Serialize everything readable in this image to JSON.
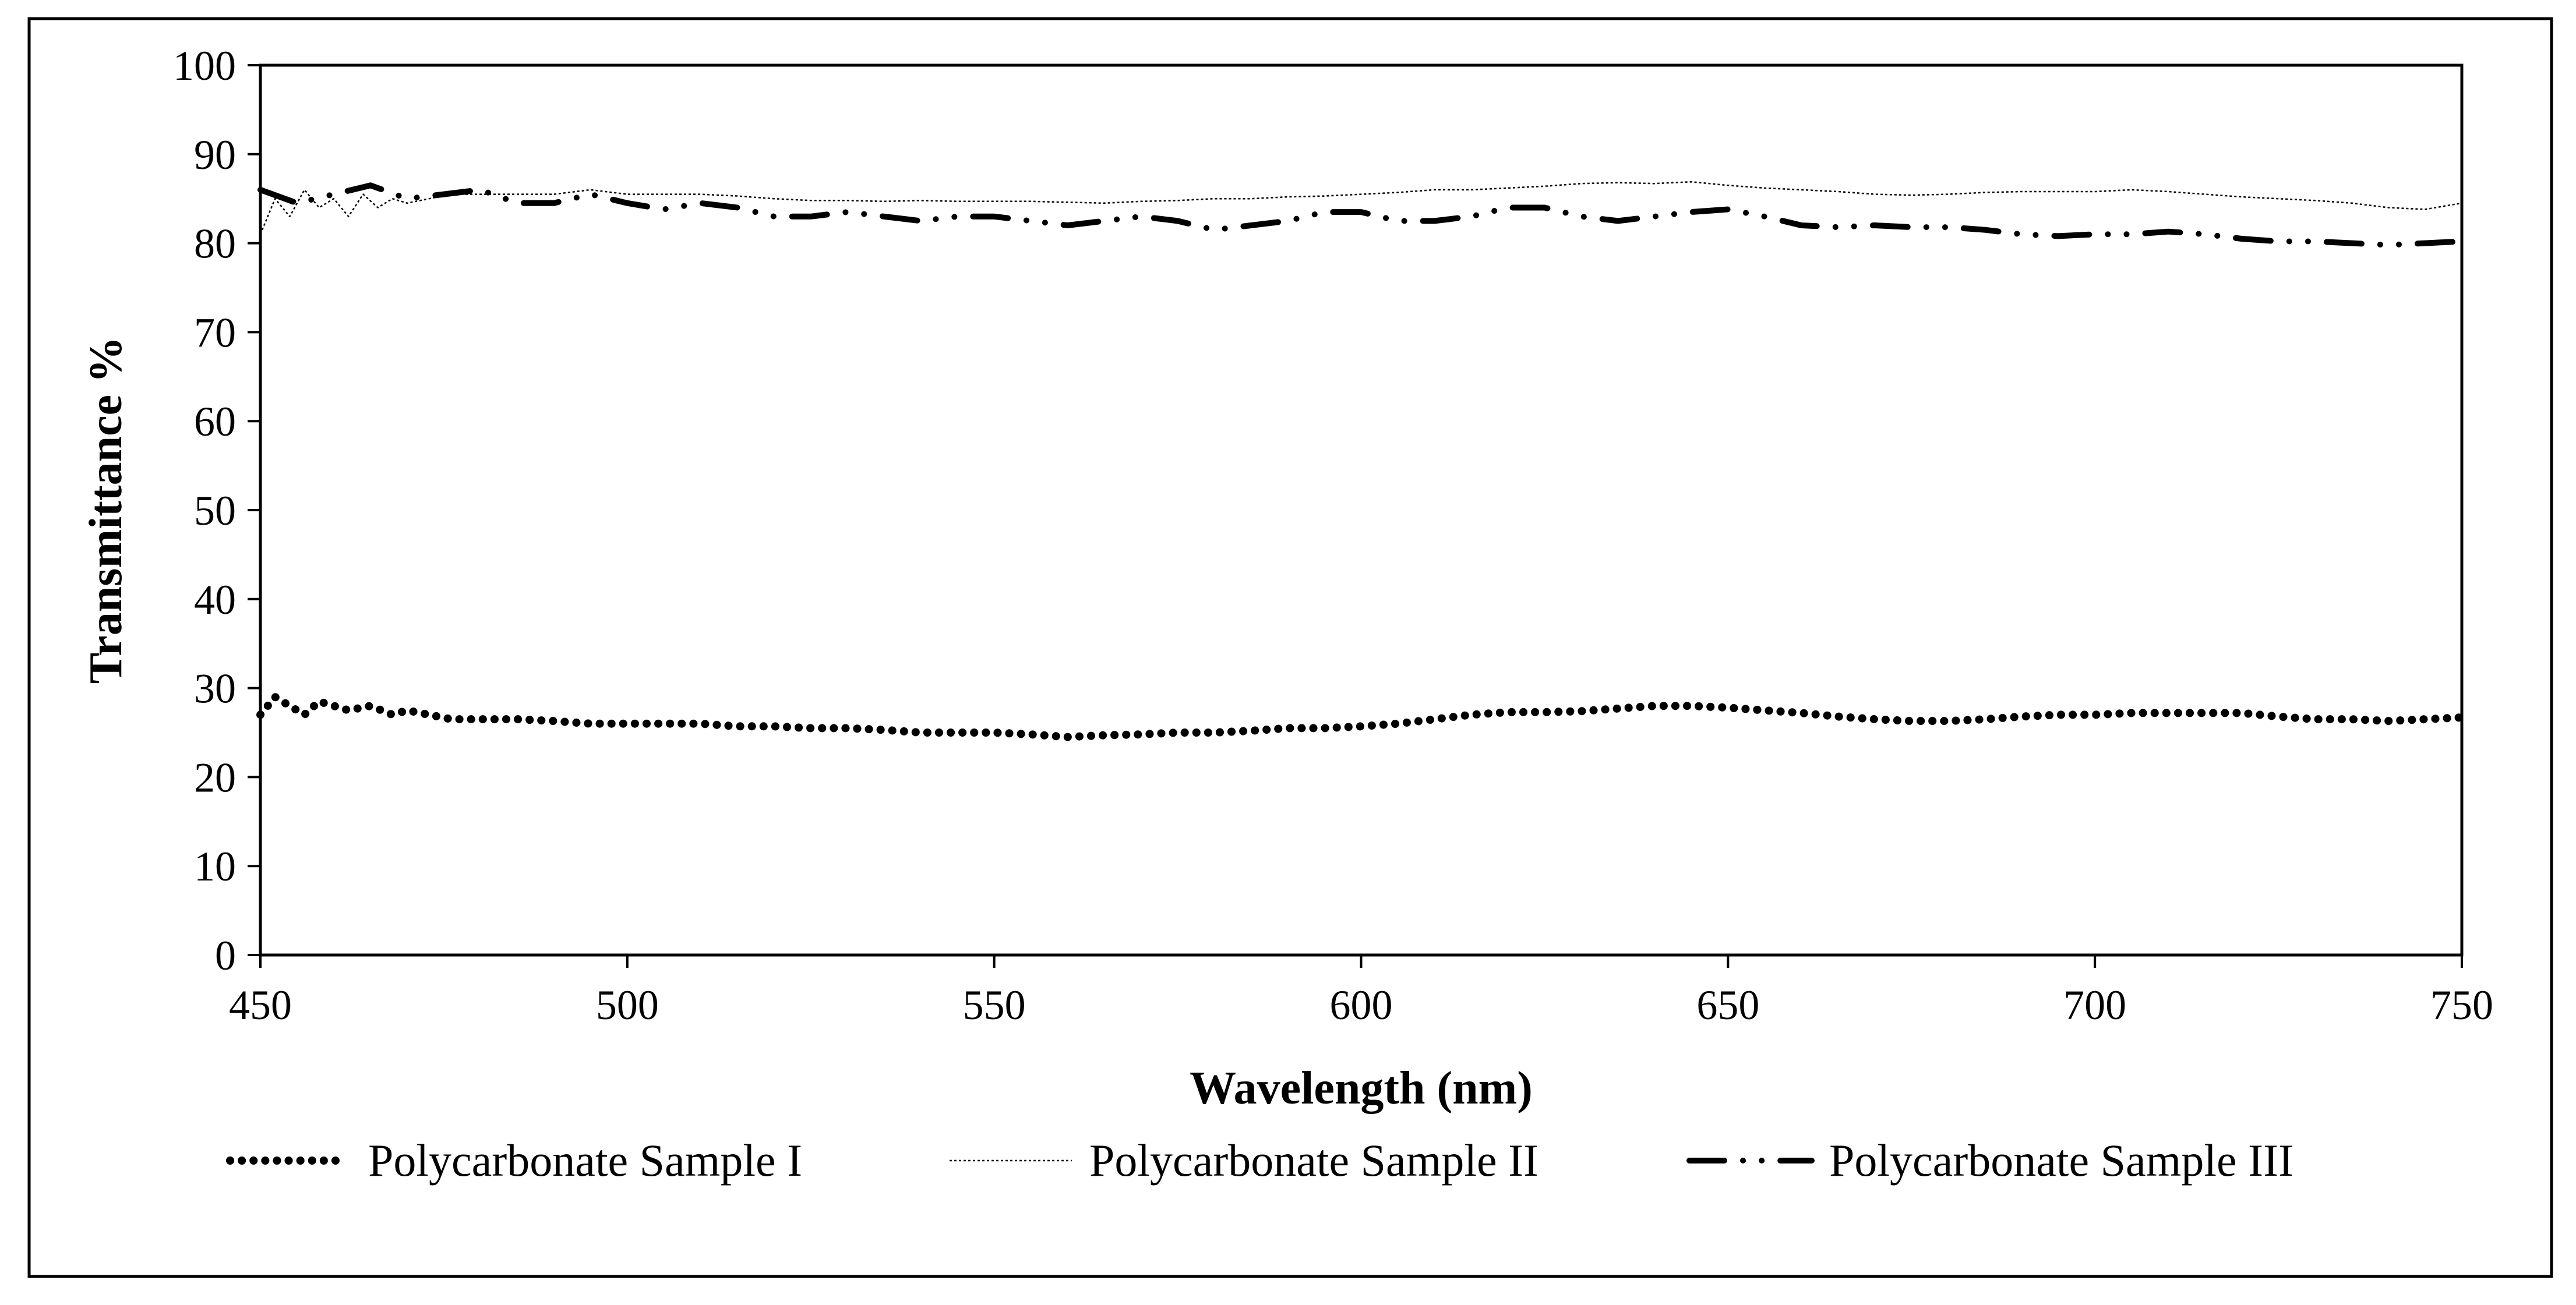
{
  "chart_data": {
    "type": "line",
    "title": "",
    "xlabel": "Wavelength (nm)",
    "ylabel": "Transmittance %",
    "xlim": [
      450,
      750
    ],
    "ylim": [
      0,
      100
    ],
    "x_ticks": [
      450,
      500,
      550,
      600,
      650,
      700,
      750
    ],
    "y_ticks": [
      0,
      10,
      20,
      30,
      40,
      50,
      60,
      70,
      80,
      90,
      100
    ],
    "grid": false,
    "legend_position": "bottom",
    "series": [
      {
        "name": "Polycarbonate Sample I",
        "style": "dotted",
        "x": [
          450,
          452,
          454,
          456,
          458,
          460,
          462,
          465,
          468,
          470,
          473,
          476,
          480,
          485,
          490,
          495,
          500,
          505,
          510,
          515,
          520,
          525,
          530,
          535,
          540,
          545,
          550,
          555,
          560,
          565,
          570,
          575,
          580,
          585,
          590,
          595,
          600,
          605,
          610,
          615,
          620,
          625,
          630,
          635,
          640,
          645,
          650,
          655,
          660,
          665,
          670,
          675,
          680,
          685,
          690,
          695,
          700,
          705,
          710,
          715,
          720,
          725,
          730,
          735,
          740,
          745,
          750
        ],
        "y": [
          27,
          29,
          28,
          27,
          28.5,
          28,
          27.5,
          28,
          27,
          27.5,
          27,
          26.5,
          26.5,
          26.5,
          26.3,
          26,
          26,
          26,
          26,
          25.7,
          25.7,
          25.5,
          25.5,
          25.3,
          25,
          25,
          25,
          24.8,
          24.5,
          24.7,
          24.8,
          25,
          25,
          25.2,
          25.5,
          25.5,
          25.7,
          26,
          26.5,
          27,
          27.3,
          27.3,
          27.4,
          27.7,
          28,
          28,
          27.8,
          27.5,
          27.2,
          26.8,
          26.5,
          26.3,
          26.3,
          26.5,
          26.8,
          27,
          27,
          27.2,
          27.2,
          27.2,
          27.2,
          26.8,
          26.5,
          26.5,
          26.3,
          26.5,
          26.7
        ]
      },
      {
        "name": "Polycarbonate Sample II",
        "style": "thin-dotted",
        "x": [
          450,
          452,
          454,
          456,
          458,
          460,
          462,
          464,
          466,
          468,
          470,
          473,
          476,
          480,
          485,
          490,
          495,
          500,
          505,
          510,
          515,
          520,
          525,
          530,
          535,
          540,
          545,
          550,
          555,
          560,
          565,
          570,
          575,
          580,
          585,
          590,
          595,
          600,
          605,
          610,
          615,
          620,
          625,
          630,
          635,
          640,
          645,
          650,
          655,
          660,
          665,
          670,
          675,
          680,
          685,
          690,
          695,
          700,
          705,
          710,
          715,
          720,
          725,
          730,
          735,
          740,
          745,
          750
        ],
        "y": [
          81,
          85,
          83,
          86,
          84,
          85,
          83,
          85.5,
          84,
          85,
          84.5,
          85,
          85.5,
          85.5,
          85.5,
          85.5,
          86,
          85.5,
          85.5,
          85.5,
          85.3,
          85,
          84.8,
          84.8,
          84.7,
          84.8,
          84.7,
          84.7,
          84.7,
          84.6,
          84.5,
          84.7,
          84.8,
          85,
          85,
          85.2,
          85.3,
          85.5,
          85.7,
          86,
          86,
          86.2,
          86.4,
          86.7,
          86.8,
          86.7,
          86.9,
          86.5,
          86.2,
          86,
          85.8,
          85.5,
          85.4,
          85.5,
          85.7,
          85.8,
          85.8,
          85.8,
          86,
          85.8,
          85.5,
          85.2,
          85,
          84.8,
          84.5,
          84,
          83.8,
          84.5
        ]
      },
      {
        "name": "Polycarbonate Sample III",
        "style": "dash-dot",
        "x": [
          450,
          455,
          460,
          465,
          470,
          475,
          480,
          485,
          490,
          495,
          500,
          505,
          510,
          515,
          520,
          525,
          530,
          535,
          540,
          545,
          550,
          555,
          560,
          565,
          570,
          575,
          580,
          585,
          590,
          595,
          600,
          605,
          610,
          615,
          620,
          625,
          630,
          635,
          640,
          645,
          650,
          655,
          660,
          665,
          670,
          675,
          680,
          685,
          690,
          695,
          700,
          705,
          710,
          715,
          720,
          725,
          730,
          735,
          740,
          745,
          750
        ],
        "y": [
          86,
          84.5,
          85.5,
          86.5,
          85,
          85.5,
          86,
          84.5,
          84.5,
          85.5,
          84.5,
          83.8,
          84.5,
          84,
          83,
          83,
          83.5,
          83,
          82.5,
          83,
          83,
          82.5,
          82,
          82.5,
          83,
          82.5,
          81.5,
          82,
          82.5,
          83.5,
          83.5,
          82.5,
          82.5,
          83,
          84,
          84,
          83,
          82.5,
          83,
          83.5,
          83.8,
          83,
          82,
          81.8,
          82,
          81.8,
          81.8,
          81.5,
          81,
          80.8,
          81,
          81,
          81.3,
          81,
          80.5,
          80.2,
          80.2,
          80,
          79.8,
          80,
          80.2
        ]
      }
    ]
  }
}
